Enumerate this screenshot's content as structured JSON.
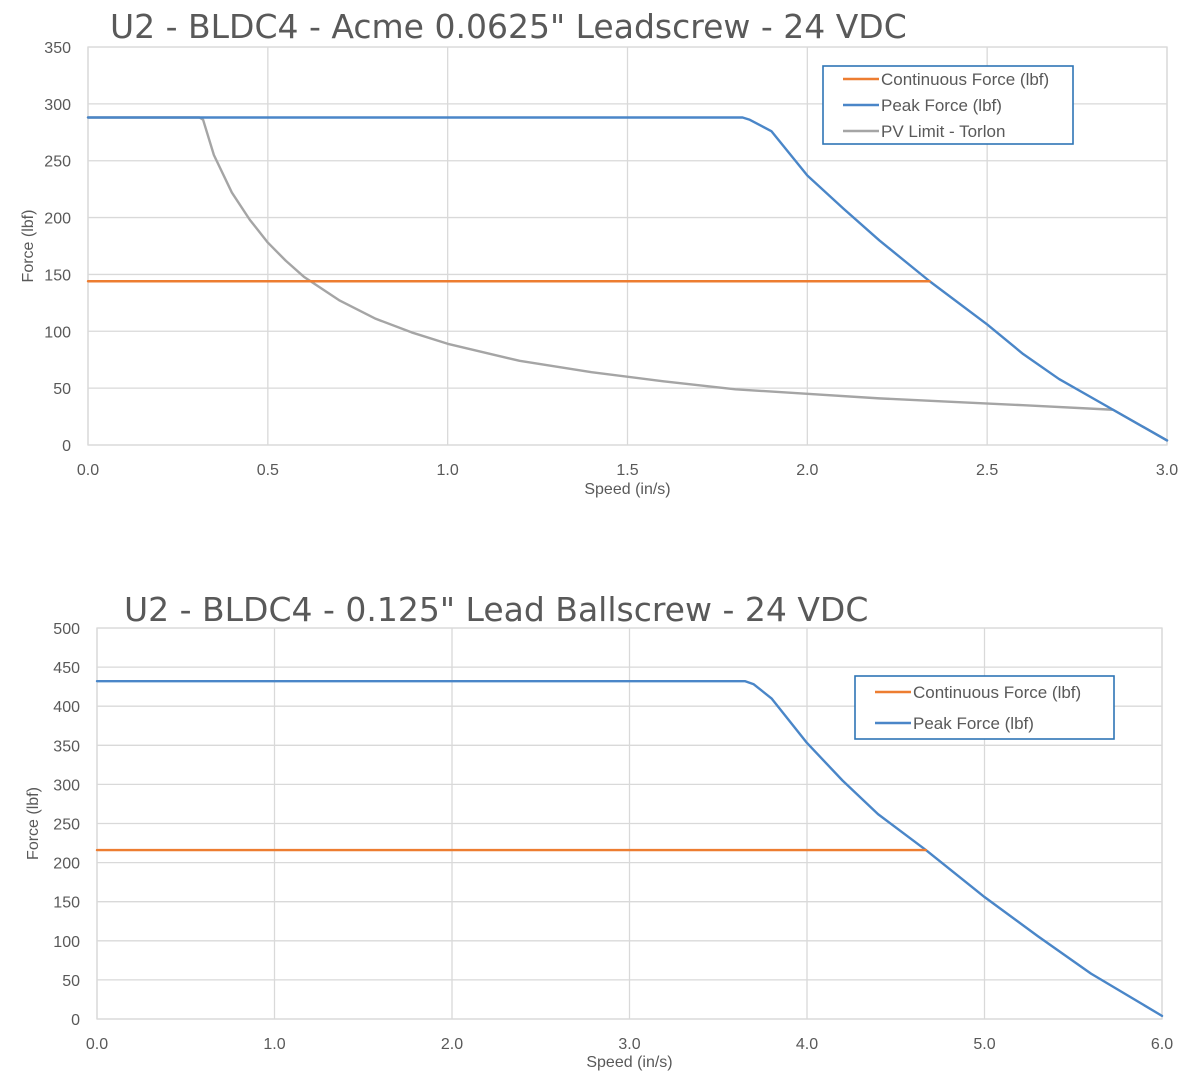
{
  "chart_data": [
    {
      "type": "line",
      "title": "U2 - BLDC4 - Acme 0.0625\" Leadscrew - 24 VDC",
      "xlabel": "Speed (in/s)",
      "ylabel": "Force (lbf)",
      "xlim": [
        0,
        3.0
      ],
      "ylim": [
        0,
        350
      ],
      "xticks": [
        "0.0",
        "0.5",
        "1.0",
        "1.5",
        "2.0",
        "2.5",
        "3.0"
      ],
      "yticks": [
        "0",
        "50",
        "100",
        "150",
        "200",
        "250",
        "300",
        "350"
      ],
      "grid": true,
      "legend_position": "top-right",
      "series": [
        {
          "name": "Continuous Force (lbf)",
          "color": "#ed7d31",
          "points": [
            [
              0,
              144
            ],
            [
              2.34,
              144
            ]
          ]
        },
        {
          "name": "Peak Force (lbf)",
          "color": "#4a86c8",
          "points": [
            [
              0,
              288
            ],
            [
              1.82,
              288
            ],
            [
              1.84,
              286
            ],
            [
              1.9,
              276
            ],
            [
              2.0,
              237
            ],
            [
              2.1,
              208
            ],
            [
              2.2,
              180
            ],
            [
              2.34,
              144
            ],
            [
              2.5,
              106
            ],
            [
              2.6,
              80
            ],
            [
              2.7,
              58
            ],
            [
              2.85,
              31
            ],
            [
              3.0,
              4
            ]
          ]
        },
        {
          "name": "PV Limit - Torlon",
          "color": "#a5a5a5",
          "points": [
            [
              0,
              288
            ],
            [
              0.31,
              288
            ],
            [
              0.32,
              286
            ],
            [
              0.35,
              255
            ],
            [
              0.4,
              222
            ],
            [
              0.45,
              198
            ],
            [
              0.5,
              178
            ],
            [
              0.55,
              162
            ],
            [
              0.6,
              148
            ],
            [
              0.7,
              127
            ],
            [
              0.8,
              111
            ],
            [
              0.9,
              99
            ],
            [
              1.0,
              89
            ],
            [
              1.2,
              74
            ],
            [
              1.4,
              64
            ],
            [
              1.6,
              56
            ],
            [
              1.8,
              49
            ],
            [
              2.0,
              45
            ],
            [
              2.2,
              41
            ],
            [
              2.4,
              38
            ],
            [
              2.6,
              35
            ],
            [
              2.85,
              31
            ],
            [
              3.0,
              4
            ]
          ]
        }
      ]
    },
    {
      "type": "line",
      "title": "U2 - BLDC4 - 0.125\" Lead Ballscrew - 24 VDC",
      "xlabel": "Speed (in/s)",
      "ylabel": "Force (lbf)",
      "xlim": [
        0,
        6.0
      ],
      "ylim": [
        0,
        500
      ],
      "xticks": [
        "0.0",
        "1.0",
        "2.0",
        "3.0",
        "4.0",
        "5.0",
        "6.0"
      ],
      "yticks": [
        "0",
        "50",
        "100",
        "150",
        "200",
        "250",
        "300",
        "350",
        "400",
        "450",
        "500"
      ],
      "grid": true,
      "legend_position": "top-right",
      "series": [
        {
          "name": "Continuous Force (lbf)",
          "color": "#ed7d31",
          "points": [
            [
              0,
              216
            ],
            [
              4.67,
              216
            ]
          ]
        },
        {
          "name": "Peak Force (lbf)",
          "color": "#4a86c8",
          "points": [
            [
              0,
              432
            ],
            [
              3.65,
              432
            ],
            [
              3.7,
              428
            ],
            [
              3.8,
              410
            ],
            [
              4.0,
              353
            ],
            [
              4.2,
              305
            ],
            [
              4.4,
              262
            ],
            [
              4.67,
              216
            ],
            [
              5.0,
              156
            ],
            [
              5.3,
              106
            ],
            [
              5.6,
              58
            ],
            [
              6.0,
              4
            ]
          ]
        }
      ]
    }
  ]
}
